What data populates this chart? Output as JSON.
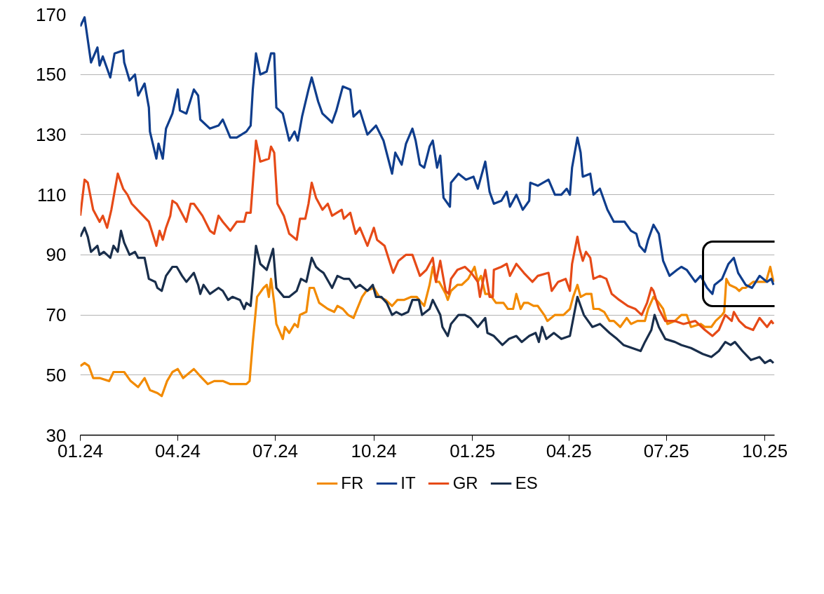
{
  "chart_data": {
    "type": "line",
    "xlim": [
      "2024-01-01",
      "2025-10-10"
    ],
    "xticks": [
      {
        "value": "2024-01-01",
        "label": "01.24"
      },
      {
        "value": "2024-04-01",
        "label": "04.24"
      },
      {
        "value": "2024-07-01",
        "label": "07.24"
      },
      {
        "value": "2024-10-01",
        "label": "10.24"
      },
      {
        "value": "2025-01-01",
        "label": "01.25"
      },
      {
        "value": "2025-04-01",
        "label": "04.25"
      },
      {
        "value": "2025-07-01",
        "label": "07.25"
      },
      {
        "value": "2025-10-01",
        "label": "10.25"
      }
    ],
    "ylim": [
      30,
      170
    ],
    "yticks": [
      30,
      50,
      70,
      90,
      110,
      130,
      150,
      170
    ],
    "grid": "y",
    "legend": "bottom",
    "line_style": "solid",
    "series": [
      {
        "name": "FR",
        "color": "#f28a00",
        "x": [
          "2024-01-01",
          "2024-01-05",
          "2024-01-09",
          "2024-01-13",
          "2024-01-19",
          "2024-01-28",
          "2024-02-01",
          "2024-02-06",
          "2024-02-11",
          "2024-02-17",
          "2024-02-24",
          "2024-03-01",
          "2024-03-06",
          "2024-03-13",
          "2024-03-17",
          "2024-03-22",
          "2024-03-27",
          "2024-04-01",
          "2024-04-06",
          "2024-04-16",
          "2024-04-21",
          "2024-04-29",
          "2024-05-05",
          "2024-05-13",
          "2024-05-20",
          "2024-05-26",
          "2024-06-04",
          "2024-06-07",
          "2024-06-10",
          "2024-06-14",
          "2024-06-20",
          "2024-06-23",
          "2024-06-25",
          "2024-06-27",
          "2024-06-30",
          "2024-07-02",
          "2024-07-08",
          "2024-07-10",
          "2024-07-14",
          "2024-07-19",
          "2024-07-22",
          "2024-07-24",
          "2024-07-30",
          "2024-08-02",
          "2024-08-06",
          "2024-08-11",
          "2024-08-19",
          "2024-08-25",
          "2024-08-28",
          "2024-09-02",
          "2024-09-07",
          "2024-09-12",
          "2024-09-20",
          "2024-09-24",
          "2024-10-01",
          "2024-10-06",
          "2024-10-12",
          "2024-10-18",
          "2024-10-23",
          "2024-10-29",
          "2024-11-05",
          "2024-11-10",
          "2024-11-17",
          "2024-11-22",
          "2024-11-25",
          "2024-11-28",
          "2024-12-01",
          "2024-12-07",
          "2024-12-09",
          "2024-12-12",
          "2024-12-18",
          "2024-12-22",
          "2024-12-28",
          "2025-01-03",
          "2025-01-06",
          "2025-01-09",
          "2025-01-13",
          "2025-01-17",
          "2025-01-23",
          "2025-01-30",
          "2025-02-03",
          "2025-02-08",
          "2025-02-11",
          "2025-02-15",
          "2025-02-18",
          "2025-02-22",
          "2025-02-27",
          "2025-03-03",
          "2025-03-09",
          "2025-03-12",
          "2025-03-19",
          "2025-03-27",
          "2025-04-02",
          "2025-04-05",
          "2025-04-09",
          "2025-04-12",
          "2025-04-17",
          "2025-04-22",
          "2025-04-24",
          "2025-04-29",
          "2025-05-04",
          "2025-05-09",
          "2025-05-13",
          "2025-05-19",
          "2025-05-25",
          "2025-05-29",
          "2025-06-04",
          "2025-06-11",
          "2025-06-14",
          "2025-06-19",
          "2025-06-24",
          "2025-06-28",
          "2025-07-02",
          "2025-07-09",
          "2025-07-15",
          "2025-07-20",
          "2025-07-24",
          "2025-08-02",
          "2025-08-06",
          "2025-08-12",
          "2025-08-16",
          "2025-08-22",
          "2025-08-24",
          "2025-08-26",
          "2025-08-29",
          "2025-09-04",
          "2025-09-07",
          "2025-09-10",
          "2025-09-13",
          "2025-09-20",
          "2025-09-27",
          "2025-10-02",
          "2025-10-06",
          "2025-10-09"
        ],
        "values": [
          53,
          54,
          53,
          49,
          49,
          48,
          51,
          51,
          51,
          48,
          46,
          49,
          45,
          44,
          43,
          48,
          51,
          52,
          49,
          52,
          50,
          47,
          48,
          48,
          47,
          47,
          47,
          48,
          61,
          76,
          79,
          80,
          76,
          82,
          74,
          67,
          62,
          66,
          64,
          67,
          66,
          70,
          71,
          79,
          79,
          74,
          72,
          71,
          73,
          72,
          70,
          69,
          76,
          78,
          79,
          76,
          75,
          73,
          75,
          75,
          76,
          76,
          73,
          80,
          86,
          81,
          81,
          77,
          75,
          78,
          80,
          80,
          82,
          86,
          81,
          83,
          77,
          77,
          74,
          74,
          72,
          72,
          77,
          72,
          74,
          74,
          73,
          73,
          70,
          68,
          70,
          70,
          72,
          76,
          80,
          76,
          77,
          77,
          72,
          72,
          71,
          68,
          68,
          66,
          69,
          67,
          68,
          68,
          72,
          76,
          74,
          72,
          67,
          68,
          70,
          70,
          66,
          67,
          66,
          66,
          68,
          70,
          71,
          82,
          80,
          79,
          78,
          79,
          79,
          81,
          81,
          81,
          86,
          81
        ]
      },
      {
        "name": "IT",
        "color": "#0f3d8c",
        "x": [
          "2024-01-01",
          "2024-01-05",
          "2024-01-11",
          "2024-01-17",
          "2024-01-19",
          "2024-01-22",
          "2024-01-29",
          "2024-02-02",
          "2024-02-10",
          "2024-02-11",
          "2024-02-16",
          "2024-02-21",
          "2024-02-24",
          "2024-03-01",
          "2024-03-05",
          "2024-03-06",
          "2024-03-12",
          "2024-03-14",
          "2024-03-18",
          "2024-03-21",
          "2024-03-27",
          "2024-04-01",
          "2024-04-03",
          "2024-04-09",
          "2024-04-16",
          "2024-04-20",
          "2024-04-22",
          "2024-05-01",
          "2024-05-09",
          "2024-05-13",
          "2024-05-20",
          "2024-05-26",
          "2024-06-04",
          "2024-06-08",
          "2024-06-10",
          "2024-06-13",
          "2024-06-17",
          "2024-06-23",
          "2024-06-27",
          "2024-06-30",
          "2024-07-02",
          "2024-07-08",
          "2024-07-14",
          "2024-07-19",
          "2024-07-22",
          "2024-07-26",
          "2024-08-01",
          "2024-08-04",
          "2024-08-10",
          "2024-08-14",
          "2024-08-23",
          "2024-08-27",
          "2024-09-02",
          "2024-09-09",
          "2024-09-12",
          "2024-09-18",
          "2024-09-25",
          "2024-10-03",
          "2024-10-10",
          "2024-10-18",
          "2024-10-21",
          "2024-10-27",
          "2024-10-31",
          "2024-11-06",
          "2024-11-09",
          "2024-11-13",
          "2024-11-17",
          "2024-11-22",
          "2024-11-25",
          "2024-11-29",
          "2024-12-02",
          "2024-12-05",
          "2024-12-11",
          "2024-12-12",
          "2024-12-19",
          "2024-12-26",
          "2025-01-02",
          "2025-01-06",
          "2025-01-13",
          "2025-01-17",
          "2025-01-21",
          "2025-01-28",
          "2025-02-02",
          "2025-02-05",
          "2025-02-11",
          "2025-02-17",
          "2025-02-23",
          "2025-02-24",
          "2025-03-03",
          "2025-03-13",
          "2025-03-19",
          "2025-03-25",
          "2025-03-30",
          "2025-04-02",
          "2025-04-04",
          "2025-04-09",
          "2025-04-12",
          "2025-04-14",
          "2025-04-21",
          "2025-04-24",
          "2025-04-30",
          "2025-05-07",
          "2025-05-13",
          "2025-05-23",
          "2025-05-29",
          "2025-06-03",
          "2025-06-06",
          "2025-06-11",
          "2025-06-14",
          "2025-06-19",
          "2025-06-24",
          "2025-06-28",
          "2025-07-04",
          "2025-07-11",
          "2025-07-15",
          "2025-07-20",
          "2025-07-28",
          "2025-08-02",
          "2025-08-08",
          "2025-08-13",
          "2025-08-15",
          "2025-08-22",
          "2025-08-28",
          "2025-09-02",
          "2025-09-06",
          "2025-09-13",
          "2025-09-19",
          "2025-09-26",
          "2025-10-03",
          "2025-10-07",
          "2025-10-09"
        ],
        "values": [
          166,
          169,
          154,
          159,
          153,
          156,
          149,
          157,
          158,
          154,
          148,
          150,
          143,
          147,
          139,
          131,
          122,
          127,
          122,
          132,
          137,
          145,
          138,
          137,
          145,
          143,
          135,
          132,
          133,
          135,
          129,
          129,
          131,
          133,
          145,
          157,
          150,
          151,
          157,
          157,
          139,
          137,
          128,
          131,
          128,
          136,
          145,
          149,
          141,
          137,
          134,
          138,
          146,
          145,
          136,
          138,
          130,
          133,
          128,
          117,
          124,
          120,
          127,
          132,
          128,
          120,
          119,
          126,
          128,
          119,
          123,
          109,
          106,
          114,
          117,
          115,
          116,
          112,
          121,
          111,
          107,
          108,
          111,
          106,
          110,
          105,
          108,
          114,
          113,
          115,
          110,
          110,
          112,
          110,
          119,
          129,
          124,
          116,
          117,
          110,
          112,
          105,
          101,
          101,
          98,
          97,
          93,
          91,
          95,
          100,
          97,
          88,
          83,
          85,
          86,
          85,
          81,
          83,
          79,
          77,
          80,
          82,
          87,
          89,
          84,
          80,
          79,
          83,
          81,
          82,
          80
        ]
      },
      {
        "name": "GR",
        "color": "#e64a17",
        "x": [
          "2024-01-01",
          "2024-01-05",
          "2024-01-08",
          "2024-01-13",
          "2024-01-19",
          "2024-01-22",
          "2024-01-26",
          "2024-01-30",
          "2024-02-05",
          "2024-02-10",
          "2024-02-14",
          "2024-02-18",
          "2024-02-26",
          "2024-03-05",
          "2024-03-12",
          "2024-03-15",
          "2024-03-18",
          "2024-03-21",
          "2024-03-25",
          "2024-03-27",
          "2024-03-31",
          "2024-04-03",
          "2024-04-09",
          "2024-04-13",
          "2024-04-16",
          "2024-04-24",
          "2024-05-01",
          "2024-05-05",
          "2024-05-09",
          "2024-05-13",
          "2024-05-20",
          "2024-05-26",
          "2024-06-02",
          "2024-06-04",
          "2024-06-08",
          "2024-06-13",
          "2024-06-17",
          "2024-06-25",
          "2024-06-27",
          "2024-06-30",
          "2024-07-03",
          "2024-07-09",
          "2024-07-14",
          "2024-07-21",
          "2024-07-24",
          "2024-07-29",
          "2024-08-01",
          "2024-08-04",
          "2024-08-08",
          "2024-08-14",
          "2024-08-19",
          "2024-08-23",
          "2024-09-01",
          "2024-09-03",
          "2024-09-09",
          "2024-09-14",
          "2024-09-18",
          "2024-09-25",
          "2024-10-01",
          "2024-10-04",
          "2024-10-11",
          "2024-10-19",
          "2024-10-24",
          "2024-10-31",
          "2024-11-06",
          "2024-11-13",
          "2024-11-19",
          "2024-11-25",
          "2024-11-28",
          "2024-12-02",
          "2024-12-07",
          "2024-12-10",
          "2024-12-12",
          "2024-12-18",
          "2024-12-25",
          "2024-12-31",
          "2025-01-06",
          "2025-01-08",
          "2025-01-13",
          "2025-01-17",
          "2025-01-20",
          "2025-01-21",
          "2025-01-28",
          "2025-02-02",
          "2025-02-05",
          "2025-02-11",
          "2025-02-18",
          "2025-02-26",
          "2025-03-03",
          "2025-03-13",
          "2025-03-16",
          "2025-03-22",
          "2025-03-29",
          "2025-04-02",
          "2025-04-04",
          "2025-04-09",
          "2025-04-11",
          "2025-04-14",
          "2025-04-17",
          "2025-04-21",
          "2025-04-24",
          "2025-04-30",
          "2025-05-06",
          "2025-05-11",
          "2025-05-18",
          "2025-05-26",
          "2025-06-02",
          "2025-06-08",
          "2025-06-13",
          "2025-06-17",
          "2025-06-19",
          "2025-06-24",
          "2025-06-30",
          "2025-07-09",
          "2025-07-17",
          "2025-07-28",
          "2025-08-06",
          "2025-08-13",
          "2025-08-19",
          "2025-08-25",
          "2025-08-31",
          "2025-09-02",
          "2025-09-07",
          "2025-09-13",
          "2025-09-20",
          "2025-09-26",
          "2025-10-03",
          "2025-10-07",
          "2025-10-09"
        ],
        "values": [
          103,
          115,
          114,
          105,
          101,
          103,
          99,
          105,
          117,
          112,
          110,
          107,
          104,
          101,
          93,
          98,
          95,
          99,
          103,
          108,
          107,
          105,
          101,
          107,
          107,
          103,
          98,
          97,
          103,
          101,
          98,
          101,
          101,
          104,
          104,
          128,
          121,
          122,
          126,
          124,
          107,
          103,
          97,
          95,
          102,
          102,
          107,
          114,
          109,
          105,
          107,
          103,
          105,
          102,
          104,
          97,
          99,
          93,
          99,
          95,
          93,
          84,
          88,
          90,
          90,
          83,
          85,
          89,
          81,
          88,
          78,
          77,
          82,
          85,
          86,
          84,
          81,
          76,
          85,
          76,
          76,
          85,
          86,
          87,
          83,
          87,
          84,
          81,
          83,
          84,
          78,
          81,
          82,
          78,
          87,
          96,
          92,
          88,
          91,
          89,
          82,
          83,
          82,
          77,
          75,
          73,
          72,
          70,
          74,
          79,
          78,
          72,
          68,
          68,
          67,
          68,
          65,
          63,
          65,
          70,
          68,
          71,
          68,
          66,
          65,
          69,
          66,
          68,
          67
        ]
      },
      {
        "name": "ES",
        "color": "#192e4b",
        "x": [
          "2024-01-01",
          "2024-01-05",
          "2024-01-08",
          "2024-01-11",
          "2024-01-17",
          "2024-01-19",
          "2024-01-23",
          "2024-01-29",
          "2024-02-01",
          "2024-02-05",
          "2024-02-08",
          "2024-02-11",
          "2024-02-16",
          "2024-02-21",
          "2024-02-24",
          "2024-03-01",
          "2024-03-05",
          "2024-03-11",
          "2024-03-13",
          "2024-03-17",
          "2024-03-21",
          "2024-03-27",
          "2024-03-31",
          "2024-04-05",
          "2024-04-09",
          "2024-04-16",
          "2024-04-20",
          "2024-04-22",
          "2024-04-25",
          "2024-05-01",
          "2024-05-09",
          "2024-05-13",
          "2024-05-18",
          "2024-05-22",
          "2024-05-29",
          "2024-06-02",
          "2024-06-04",
          "2024-06-08",
          "2024-06-13",
          "2024-06-17",
          "2024-06-23",
          "2024-06-29",
          "2024-07-02",
          "2024-07-09",
          "2024-07-14",
          "2024-07-21",
          "2024-07-25",
          "2024-07-30",
          "2024-08-04",
          "2024-08-08",
          "2024-08-11",
          "2024-08-15",
          "2024-08-23",
          "2024-08-28",
          "2024-09-03",
          "2024-09-08",
          "2024-09-14",
          "2024-09-18",
          "2024-09-25",
          "2024-09-30",
          "2024-10-03",
          "2024-10-08",
          "2024-10-13",
          "2024-10-18",
          "2024-10-22",
          "2024-10-27",
          "2024-11-02",
          "2024-11-06",
          "2024-11-12",
          "2024-11-15",
          "2024-11-22",
          "2024-11-25",
          "2024-12-02",
          "2024-12-04",
          "2024-12-09",
          "2024-12-12",
          "2024-12-19",
          "2024-12-25",
          "2024-12-30",
          "2025-01-06",
          "2025-01-13",
          "2025-01-15",
          "2025-01-21",
          "2025-01-29",
          "2025-02-04",
          "2025-02-11",
          "2025-02-16",
          "2025-02-23",
          "2025-03-01",
          "2025-03-04",
          "2025-03-07",
          "2025-03-11",
          "2025-03-18",
          "2025-03-25",
          "2025-04-02",
          "2025-04-09",
          "2025-04-12",
          "2025-04-15",
          "2025-04-23",
          "2025-04-30",
          "2025-05-09",
          "2025-05-16",
          "2025-05-22",
          "2025-05-30",
          "2025-06-07",
          "2025-06-11",
          "2025-06-17",
          "2025-06-20",
          "2025-06-24",
          "2025-06-30",
          "2025-07-09",
          "2025-07-15",
          "2025-07-24",
          "2025-08-04",
          "2025-08-12",
          "2025-08-19",
          "2025-08-25",
          "2025-08-30",
          "2025-09-03",
          "2025-09-10",
          "2025-09-18",
          "2025-09-26",
          "2025-10-01",
          "2025-10-06",
          "2025-10-09"
        ],
        "values": [
          96,
          99,
          96,
          91,
          93,
          90,
          91,
          89,
          93,
          91,
          98,
          94,
          90,
          91,
          89,
          89,
          82,
          81,
          79,
          78,
          83,
          86,
          86,
          83,
          81,
          84,
          80,
          77,
          80,
          77,
          79,
          78,
          75,
          76,
          75,
          72,
          74,
          73,
          93,
          87,
          85,
          92,
          79,
          76,
          76,
          78,
          82,
          81,
          89,
          86,
          85,
          84,
          79,
          83,
          82,
          82,
          79,
          80,
          78,
          80,
          76,
          76,
          74,
          70,
          71,
          70,
          71,
          75,
          75,
          70,
          72,
          75,
          70,
          66,
          63,
          67,
          70,
          70,
          69,
          66,
          69,
          64,
          63,
          60,
          62,
          63,
          61,
          63,
          64,
          61,
          66,
          62,
          64,
          62,
          63,
          76,
          73,
          70,
          66,
          67,
          64,
          62,
          60,
          59,
          58,
          61,
          65,
          70,
          66,
          62,
          61,
          60,
          59,
          57,
          56,
          58,
          61,
          60,
          61,
          58,
          55,
          56,
          54,
          55,
          54
        ]
      }
    ]
  }
}
